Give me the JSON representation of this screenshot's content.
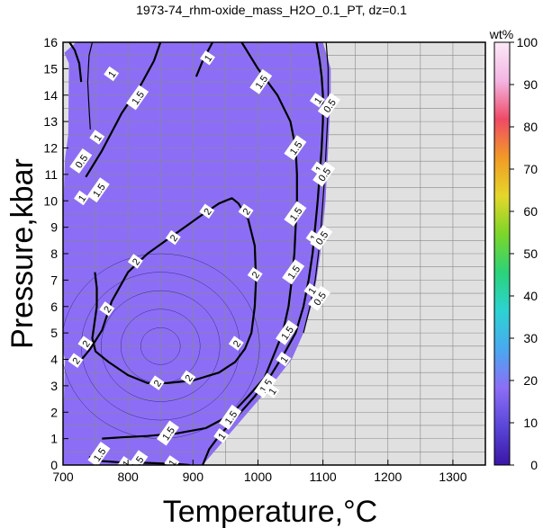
{
  "chart_data": {
    "type": "heatmap",
    "title": "1973-74_rhm-oxide_mass_H2O_0.1_PT, dz=0.1",
    "xlabel": "Temperature,°C",
    "ylabel": "Pressure,kbar",
    "xlim": [
      700,
      1350
    ],
    "ylim": [
      0,
      16
    ],
    "x_ticks": [
      "700",
      "800",
      "900",
      "1000",
      "1100",
      "1200",
      "1300"
    ],
    "y_ticks": [
      "0",
      "1",
      "2",
      "3",
      "4",
      "5",
      "6",
      "7",
      "8",
      "9",
      "10",
      "11",
      "12",
      "13",
      "14",
      "15",
      "16"
    ],
    "grid": true,
    "background_color": "#e0e0e0",
    "field_color": "#8c6ef6",
    "field_boundary": [
      [
        720,
        16
      ],
      [
        835,
        16
      ],
      [
        960,
        16
      ],
      [
        1050,
        16
      ],
      [
        1100,
        16
      ],
      [
        1112,
        15
      ],
      [
        1112,
        14
      ],
      [
        1110,
        13
      ],
      [
        1108,
        12
      ],
      [
        1106,
        11
      ],
      [
        1104,
        10
      ],
      [
        1100,
        9
      ],
      [
        1096,
        8
      ],
      [
        1090,
        7
      ],
      [
        1082,
        6
      ],
      [
        1070,
        5
      ],
      [
        1052,
        4
      ],
      [
        1020,
        3
      ],
      [
        985,
        2
      ],
      [
        950,
        1
      ],
      [
        915,
        0
      ],
      [
        700,
        0
      ],
      [
        700,
        1.3
      ],
      [
        703,
        4
      ],
      [
        700,
        4.3
      ],
      [
        700,
        9.5
      ],
      [
        703,
        11.6
      ],
      [
        708,
        12.5
      ],
      [
        709,
        15.2
      ],
      [
        702,
        15.6
      ]
    ],
    "contours": [
      {
        "level": "2",
        "points": [
          [
            722,
            3.8
          ],
          [
            742,
            4.4
          ],
          [
            760,
            5.1
          ],
          [
            775,
            6.2
          ],
          [
            800,
            7.3
          ],
          [
            830,
            8.0
          ],
          [
            870,
            8.7
          ],
          [
            910,
            9.4
          ],
          [
            940,
            9.9
          ],
          [
            960,
            10.1
          ],
          [
            970,
            9.9
          ],
          [
            985,
            9.3
          ],
          [
            995,
            8.3
          ],
          [
            997,
            7.0
          ],
          [
            995,
            6.0
          ],
          [
            990,
            5.0
          ],
          [
            980,
            4.4
          ],
          [
            965,
            3.9
          ],
          [
            940,
            3.5
          ],
          [
            900,
            3.2
          ],
          [
            860,
            3.1
          ],
          [
            830,
            3.1
          ],
          [
            800,
            3.4
          ],
          [
            770,
            3.9
          ],
          [
            750,
            4.3
          ],
          [
            745,
            4.8
          ],
          [
            748,
            5.3
          ],
          [
            752,
            6.0
          ],
          [
            752,
            6.7
          ],
          [
            749,
            7.3
          ]
        ],
        "labels": [
          [
            720,
            3.95
          ],
          [
            768,
            5.9
          ],
          [
            735,
            4.6
          ],
          [
            812,
            7.7
          ],
          [
            870,
            8.6
          ],
          [
            922,
            9.6
          ],
          [
            982,
            9.6
          ],
          [
            996,
            7.2
          ],
          [
            967,
            4.6
          ],
          [
            845,
            3.1
          ],
          [
            893,
            3.3
          ]
        ]
      },
      {
        "level": "1.5",
        "points": [
          [
            735,
            10.9
          ],
          [
            760,
            11.9
          ],
          [
            790,
            13.3
          ],
          [
            820,
            14.4
          ],
          [
            840,
            15.3
          ],
          [
            850,
            16
          ]
        ],
        "labels": [
          [
            755,
            10.4
          ],
          [
            815,
            13.9
          ],
          [
            1005,
            14.5
          ],
          [
            1058,
            12.0
          ],
          [
            1058,
            9.5
          ],
          [
            1055,
            7.3
          ],
          [
            1045,
            5.0
          ],
          [
            1012,
            3.0
          ],
          [
            958,
            1.8
          ],
          [
            862,
            1.2
          ],
          [
            756,
            0.4
          ]
        ]
      },
      {
        "level": "1.5",
        "points": [
          [
            975,
            16
          ],
          [
            1000,
            15.0
          ],
          [
            1030,
            14.0
          ],
          [
            1050,
            13.0
          ],
          [
            1058,
            12.0
          ],
          [
            1060,
            11.0
          ],
          [
            1060,
            10.0
          ],
          [
            1058,
            9.0
          ],
          [
            1056,
            8.0
          ],
          [
            1052,
            7.0
          ],
          [
            1047,
            6.0
          ],
          [
            1038,
            5.0
          ],
          [
            1025,
            4.2
          ],
          [
            1010,
            3.3
          ],
          [
            985,
            2.6
          ],
          [
            958,
            1.9
          ],
          [
            920,
            1.4
          ],
          [
            875,
            1.2
          ],
          [
            830,
            1.1
          ],
          [
            790,
            1.05
          ],
          [
            760,
            1.0
          ]
        ],
        "labels": []
      },
      {
        "level": "1",
        "points": [
          [
            930,
            16
          ],
          [
            915,
            15.3
          ],
          [
            905,
            14.7
          ]
        ],
        "labels": [
          [
            923,
            15.4
          ]
        ]
      },
      {
        "level": "1",
        "points": [
          [
            1090,
            16
          ],
          [
            1095,
            15.3
          ],
          [
            1098,
            14.7
          ],
          [
            1100,
            14.0
          ],
          [
            1100,
            13.0
          ],
          [
            1098,
            12.0
          ],
          [
            1095,
            11.0
          ],
          [
            1092,
            10.0
          ],
          [
            1088,
            9.0
          ],
          [
            1084,
            8.0
          ],
          [
            1078,
            7.0
          ],
          [
            1070,
            6.0
          ],
          [
            1058,
            5.0
          ],
          [
            1040,
            4.2
          ],
          [
            1020,
            3.4
          ],
          [
            995,
            2.6
          ],
          [
            970,
            1.9
          ],
          [
            940,
            1.1
          ],
          [
            925,
            0.6
          ],
          [
            915,
            0
          ]
        ],
        "labels": [
          [
            1092,
            13.8
          ],
          [
            1094,
            11.2
          ],
          [
            1086,
            8.6
          ],
          [
            1083,
            6.6
          ],
          [
            1040,
            4.0
          ],
          [
            1022,
            2.8
          ],
          [
            944,
            1.1
          ]
        ]
      },
      {
        "level": "0.5",
        "points": [
          [
            1105,
            16
          ],
          [
            1108,
            15
          ],
          [
            1108,
            14
          ],
          [
            1107,
            13
          ],
          [
            1105,
            12
          ],
          [
            1103,
            11
          ],
          [
            1100,
            10
          ],
          [
            1097,
            9
          ],
          [
            1093,
            8
          ],
          [
            1088,
            7
          ],
          [
            1080,
            6
          ],
          [
            1070,
            5
          ]
        ],
        "labels": [
          [
            1110,
            13.6
          ],
          [
            1102,
            11.0
          ],
          [
            1098,
            8.6
          ],
          [
            1095,
            6.3
          ]
        ]
      },
      {
        "level": "0.5",
        "points": [
          [
            745,
            16
          ],
          [
            740,
            15.5
          ],
          [
            738,
            14.5
          ],
          [
            740,
            13.5
          ],
          [
            742,
            12.7
          ]
        ],
        "labels": [
          [
            728,
            11.5
          ]
        ]
      },
      {
        "level": "1",
        "points": [
          [
            710,
            16
          ],
          [
            718,
            15.7
          ],
          [
            725,
            15.2
          ],
          [
            728,
            14.5
          ]
        ],
        "labels": [
          [
            775,
            14.8
          ],
          [
            753,
            12.4
          ],
          [
            729,
            10.1
          ]
        ]
      },
      {
        "level": "1",
        "points": [
          [
            740,
            0.25
          ],
          [
            760,
            0.15
          ],
          [
            790,
            0.1
          ],
          [
            830,
            0.08
          ],
          [
            860,
            0.05
          ],
          [
            880,
            0.03
          ],
          [
            895,
            0.0
          ]
        ],
        "labels": [
          [
            797,
            0.05
          ],
          [
            868,
            0.08
          ]
        ]
      },
      {
        "level": "1.5",
        "points": [
          [
            740,
            0.3
          ],
          [
            760,
            0.25
          ]
        ],
        "labels": [
          [
            814,
            0.08
          ]
        ]
      },
      {
        "level": "2",
        "points": [
          [
            730,
            4.5
          ],
          [
            738,
            4.4
          ]
        ],
        "labels": []
      }
    ]
  },
  "colorbar": {
    "label": "wt%",
    "ticks": [
      "0",
      "10",
      "20",
      "30",
      "40",
      "50",
      "60",
      "70",
      "80",
      "90",
      "100"
    ],
    "min": 0,
    "max": 100,
    "stops": [
      "#3a16a6",
      "#5a46d8",
      "#8c6ef6",
      "#4aa8f0",
      "#2cd3d3",
      "#2bd37a",
      "#7ad62a",
      "#e4d72b",
      "#f19a26",
      "#ef4a66",
      "#f3b5e3",
      "#fbe9f6"
    ]
  }
}
